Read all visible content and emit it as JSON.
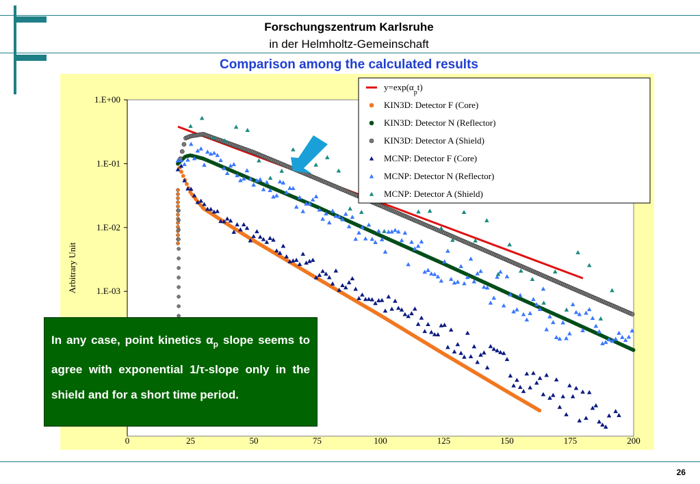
{
  "header": {
    "line1": "Forschungszentrum Karlsruhe",
    "line2": "in der Helmholtz-Gemeinschaft"
  },
  "slide": {
    "title": "Comparison among the calculated results",
    "page_number": "26"
  },
  "callout": {
    "text_before": "In any case, point kinetics α",
    "subscript": "p",
    "text_after": " slope seems to agree with exponential 1/τ-slope only in the shield and for a short time period."
  },
  "colors": {
    "teal_lines": "#1f7f86",
    "panel_bg": "#ffffaa",
    "title_blue": "#1f3fd0",
    "callout_bg": "#006400",
    "arrow": "#1aa0d8"
  },
  "chart_data": {
    "type": "scatter",
    "yscale": "log",
    "xlim": [
      0,
      200
    ],
    "ylim": [
      1e-05,
      1
    ],
    "ylabel": "Arbitrary Unit",
    "xlabel": "",
    "x_ticks": [
      "0",
      "25",
      "50",
      "75",
      "100",
      "125",
      "150",
      "175",
      "200"
    ],
    "y_ticks": [
      "1.E+00",
      "1.E-01",
      "1.E-02",
      "1.E-03"
    ],
    "legend_position": "top-right",
    "series": [
      {
        "name": "y=exp(α_pt)",
        "kind": "line",
        "color": "#e01010",
        "x": [
          20,
          180
        ],
        "y": [
          0.38,
          0.0016
        ]
      },
      {
        "name": "KIN3D: Detector F (Core)",
        "kind": "dots",
        "color": "#f07820",
        "x": [
          20,
          25,
          30,
          40,
          50,
          75,
          100,
          125,
          150,
          163
        ],
        "y": [
          0.1,
          0.035,
          0.02,
          0.011,
          0.0062,
          0.0016,
          0.00042,
          0.000105,
          2.7e-05,
          1.35e-05
        ]
      },
      {
        "name": "KIN3D: Detector N (Reflector)",
        "kind": "dots",
        "color": "#004d1a",
        "x": [
          20,
          23,
          25,
          30,
          50,
          75,
          100,
          125,
          150,
          175,
          200
        ],
        "y": [
          0.1,
          0.13,
          0.135,
          0.12,
          0.055,
          0.021,
          0.0075,
          0.0027,
          0.00095,
          0.00034,
          0.00012
        ]
      },
      {
        "name": "KIN3D: Detector A (Shield)",
        "kind": "dots",
        "color": "#7a7a7a",
        "x": [
          21,
          23,
          25,
          30,
          50,
          75,
          100,
          125,
          150,
          175,
          200
        ],
        "y": [
          0.12,
          0.25,
          0.27,
          0.29,
          0.15,
          0.058,
          0.022,
          0.0083,
          0.0031,
          0.00115,
          0.00043
        ]
      },
      {
        "name": "MCNP: Detector F (Core)",
        "kind": "triangles",
        "color": "#0a1a80",
        "x": [
          20,
          25,
          30,
          40,
          50,
          75,
          100,
          125,
          150,
          175,
          195
        ],
        "y": [
          0.1,
          0.037,
          0.021,
          0.012,
          0.0072,
          0.0022,
          0.00068,
          0.00021,
          6.5e-05,
          2e-05,
          8.5e-06
        ]
      },
      {
        "name": "MCNP: Detector N (Reflector)",
        "kind": "triangles",
        "color": "#3a78ff",
        "x": [
          20,
          25,
          30,
          50,
          75,
          100,
          125,
          150,
          175,
          200
        ],
        "y": [
          0.1,
          0.16,
          0.13,
          0.052,
          0.02,
          0.0072,
          0.0026,
          0.00093,
          0.00033,
          0.00012
        ]
      },
      {
        "name": "MCNP: Detector A (Shield)",
        "kind": "triangles",
        "color": "#1a8a80",
        "x": [
          25,
          32,
          50,
          75,
          100,
          125,
          150,
          175,
          195
        ],
        "y": [
          0.26,
          0.3,
          0.15,
          0.06,
          0.023,
          0.0085,
          0.0032,
          0.0012,
          0.00045
        ]
      }
    ]
  }
}
